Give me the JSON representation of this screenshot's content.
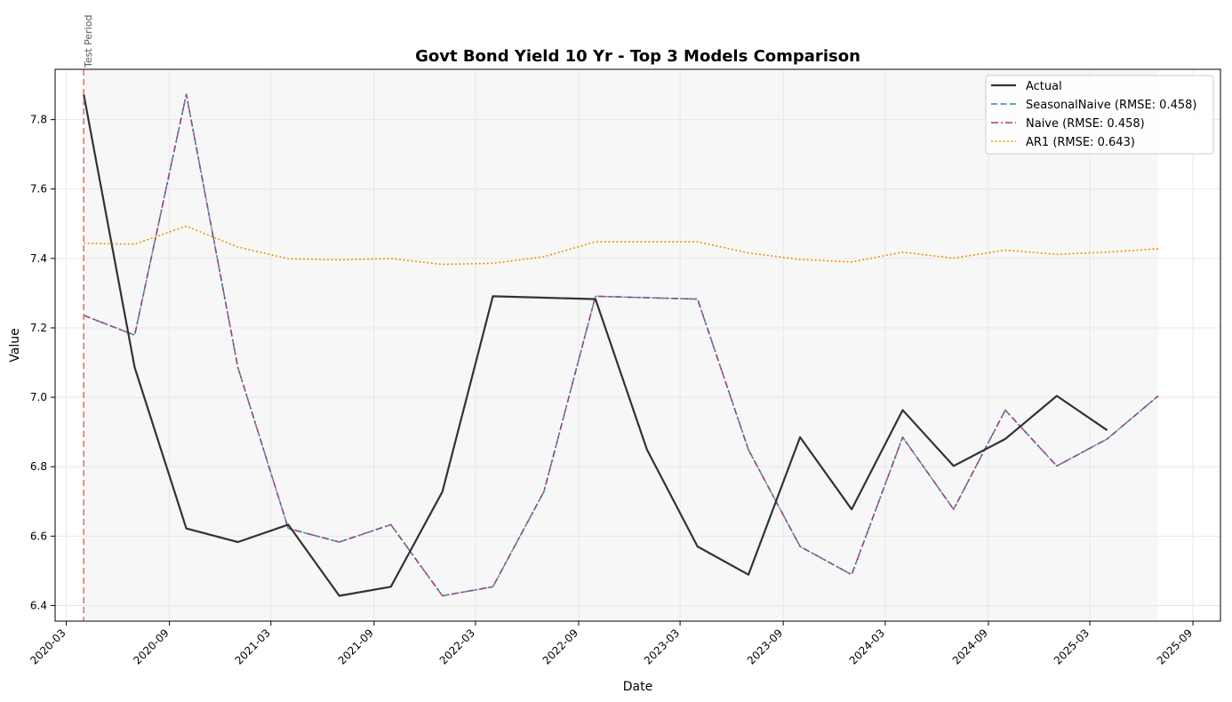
{
  "chart_data": {
    "type": "line",
    "title": "Govt Bond Yield 10 Yr - Top 3 Models Comparison",
    "xlabel": "Date",
    "ylabel": "Value",
    "x": [
      "2020-04",
      "2020-07",
      "2020-10",
      "2021-01",
      "2021-04",
      "2021-07",
      "2021-10",
      "2022-01",
      "2022-04",
      "2022-07",
      "2022-10",
      "2023-01",
      "2023-04",
      "2023-07",
      "2023-10",
      "2024-01",
      "2024-04",
      "2024-07",
      "2024-10",
      "2025-01",
      "2025-04",
      "2025-07"
    ],
    "x_ticks": [
      "2020-03",
      "2020-09",
      "2021-03",
      "2021-09",
      "2022-03",
      "2022-09",
      "2023-03",
      "2023-09",
      "2024-03",
      "2024-09",
      "2025-03",
      "2025-09"
    ],
    "y_ticks": [
      "6.4",
      "6.6",
      "6.8",
      "7.0",
      "7.2",
      "7.4",
      "7.6",
      "7.8"
    ],
    "ylim": [
      6.355,
      7.945
    ],
    "xlim": [
      "2020-02-10",
      "2025-10-20"
    ],
    "grid": true,
    "legend_position": "top-right",
    "shaded_region": [
      "2020-04",
      "2025-07"
    ],
    "annotations": [
      {
        "text": "Test Period",
        "x": "2020-04"
      }
    ],
    "series": [
      {
        "name": "Actual",
        "color": "#333333",
        "style": "solid",
        "values": [
          7.873,
          7.086,
          6.622,
          6.583,
          6.633,
          6.428,
          6.454,
          6.728,
          7.291,
          7.287,
          7.283,
          6.849,
          6.57,
          6.489,
          6.885,
          6.677,
          6.963,
          6.802,
          6.88,
          7.004,
          6.905,
          null
        ]
      },
      {
        "name": "SeasonalNaive (RMSE: 0.458)",
        "color": "#2e86ab",
        "style": "dashed",
        "values": [
          7.236,
          7.179,
          7.873,
          7.086,
          6.622,
          6.583,
          6.633,
          6.428,
          6.454,
          6.728,
          7.291,
          7.287,
          7.283,
          6.849,
          6.57,
          6.489,
          6.885,
          6.677,
          6.963,
          6.802,
          6.88,
          7.004
        ]
      },
      {
        "name": "Naive (RMSE: 0.458)",
        "color": "#a23b72",
        "style": "dashdot",
        "values": [
          7.236,
          7.179,
          7.873,
          7.086,
          6.622,
          6.583,
          6.633,
          6.428,
          6.454,
          6.728,
          7.291,
          7.287,
          7.283,
          6.849,
          6.57,
          6.489,
          6.885,
          6.677,
          6.963,
          6.802,
          6.88,
          7.004
        ]
      },
      {
        "name": "AR1 (RMSE: 0.643)",
        "color": "#f18f01",
        "style": "dotted",
        "values": [
          7.444,
          7.441,
          7.493,
          7.433,
          7.399,
          7.396,
          7.4,
          7.383,
          7.386,
          7.405,
          7.448,
          7.448,
          7.448,
          7.416,
          7.397,
          7.39,
          7.418,
          7.401,
          7.424,
          7.412,
          7.418,
          7.428
        ]
      }
    ]
  }
}
